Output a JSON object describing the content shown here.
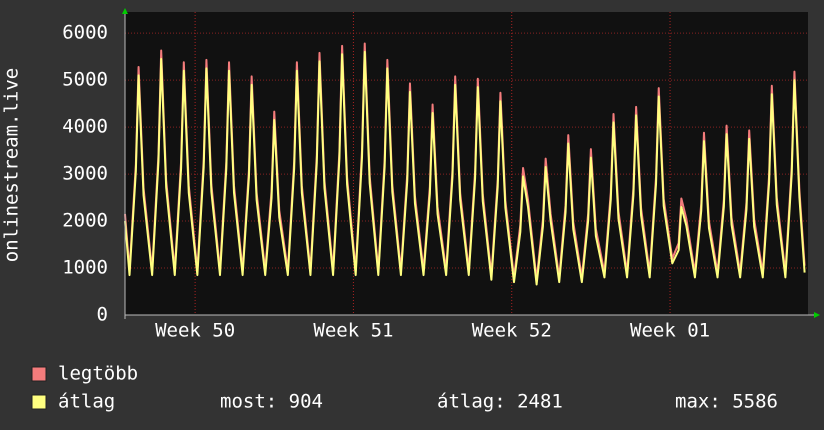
{
  "chart_data": {
    "type": "line",
    "y_label": "onlinestream.live",
    "x": [
      -0.1,
      0.1,
      0.38,
      0.5,
      0.72,
      1.1,
      1.38,
      1.5,
      1.72,
      2.1,
      2.38,
      2.5,
      2.72,
      3.1,
      3.38,
      3.5,
      3.72,
      4.1,
      4.38,
      4.5,
      4.72,
      5.1,
      5.38,
      5.5,
      5.72,
      6.1,
      6.38,
      6.5,
      6.72,
      7.1,
      7.38,
      7.5,
      7.72,
      8.1,
      8.38,
      8.5,
      8.72,
      9.1,
      9.38,
      9.5,
      9.72,
      10.1,
      10.38,
      10.5,
      10.72,
      11.1,
      11.38,
      11.5,
      11.72,
      12.1,
      12.38,
      12.5,
      12.72,
      13.1,
      13.38,
      13.5,
      13.72,
      14.1,
      14.38,
      14.5,
      14.72,
      15.1,
      15.38,
      15.5,
      15.72,
      16.1,
      16.38,
      16.5,
      16.72,
      17.1,
      17.38,
      17.5,
      17.72,
      18.1,
      18.38,
      18.5,
      18.72,
      19.1,
      19.38,
      19.5,
      19.72,
      20.1,
      20.38,
      20.5,
      20.72,
      21.1,
      21.38,
      21.5,
      21.72,
      22.1,
      22.38,
      22.5,
      22.72,
      23.1,
      23.38,
      23.5,
      23.72,
      24.1,
      24.38,
      24.5,
      24.72,
      25.1,
      25.38,
      25.5,
      25.72,
      26.1,
      26.38,
      26.5,
      26.72,
      27.1,
      27.38,
      27.5,
      27.72,
      28.1,
      28.38,
      28.5,
      28.72,
      29.1,
      29.38,
      29.5,
      29.72,
      29.95
    ],
    "series": [
      {
        "name": "legtöbb",
        "color": "#f47c7c",
        "values": [
          2150,
          950,
          3210,
          5280,
          2700,
          950,
          3420,
          5630,
          2870,
          950,
          3270,
          5380,
          2750,
          950,
          3300,
          5430,
          2770,
          950,
          3270,
          5380,
          2750,
          950,
          3090,
          5080,
          2600,
          950,
          2640,
          4330,
          2230,
          950,
          3270,
          5380,
          2750,
          950,
          3390,
          5580,
          2850,
          950,
          3480,
          5730,
          2930,
          950,
          3510,
          5780,
          2950,
          950,
          3300,
          5430,
          2770,
          950,
          3000,
          4930,
          2530,
          950,
          2730,
          4480,
          2300,
          950,
          3090,
          5080,
          2600,
          950,
          3060,
          5030,
          2570,
          850,
          2880,
          4730,
          2430,
          800,
          1920,
          3130,
          2450,
          750,
          2040,
          3330,
          2150,
          800,
          2340,
          3830,
          1980,
          800,
          2160,
          3530,
          1830,
          900,
          2610,
          4280,
          2200,
          900,
          2700,
          4430,
          2270,
          900,
          2940,
          4830,
          2470,
          1200,
          1530,
          2480,
          2050,
          900,
          2370,
          3880,
          2000,
          900,
          2460,
          4030,
          2070,
          900,
          2400,
          3930,
          2030,
          900,
          2970,
          4880,
          2500,
          900,
          3150,
          5180,
          2650,
          1050
        ]
      },
      {
        "name": "átlag",
        "color": "#ffff80",
        "values": [
          2000,
          850,
          3060,
          5100,
          2550,
          850,
          3270,
          5450,
          2720,
          850,
          3120,
          5200,
          2600,
          850,
          3150,
          5250,
          2620,
          850,
          3120,
          5200,
          2600,
          850,
          2940,
          4900,
          2450,
          850,
          2490,
          4150,
          2080,
          850,
          3120,
          5200,
          2600,
          850,
          3240,
          5400,
          2700,
          850,
          3330,
          5550,
          2780,
          850,
          3360,
          5600,
          2800,
          850,
          3150,
          5250,
          2620,
          850,
          2850,
          4750,
          2380,
          850,
          2580,
          4300,
          2150,
          850,
          2940,
          4900,
          2450,
          850,
          2910,
          4850,
          2420,
          750,
          2730,
          4550,
          2280,
          700,
          1770,
          2950,
          2300,
          650,
          1890,
          3150,
          2000,
          700,
          2190,
          3650,
          1830,
          700,
          2010,
          3350,
          1680,
          800,
          2460,
          4100,
          2050,
          800,
          2550,
          4250,
          2120,
          800,
          2790,
          4650,
          2320,
          1100,
          1380,
          2300,
          1900,
          800,
          2220,
          3700,
          1850,
          800,
          2310,
          3850,
          1920,
          800,
          2250,
          3750,
          1880,
          800,
          2820,
          4700,
          2350,
          800,
          3000,
          5000,
          2500,
          904
        ]
      }
    ],
    "xlim": [
      -0.1,
      30.1
    ],
    "xticks": [
      {
        "value": 3,
        "label": "Week 50"
      },
      {
        "value": 10,
        "label": "Week 51"
      },
      {
        "value": 17,
        "label": "Week 52"
      },
      {
        "value": 24,
        "label": "Week 01"
      }
    ],
    "ylim": [
      0,
      6450
    ],
    "yticks": [
      0,
      1000,
      2000,
      3000,
      4000,
      5000,
      6000
    ],
    "grid": true,
    "stats": [
      "most: 904",
      "átlag: 2481",
      "max: 5586"
    ]
  }
}
